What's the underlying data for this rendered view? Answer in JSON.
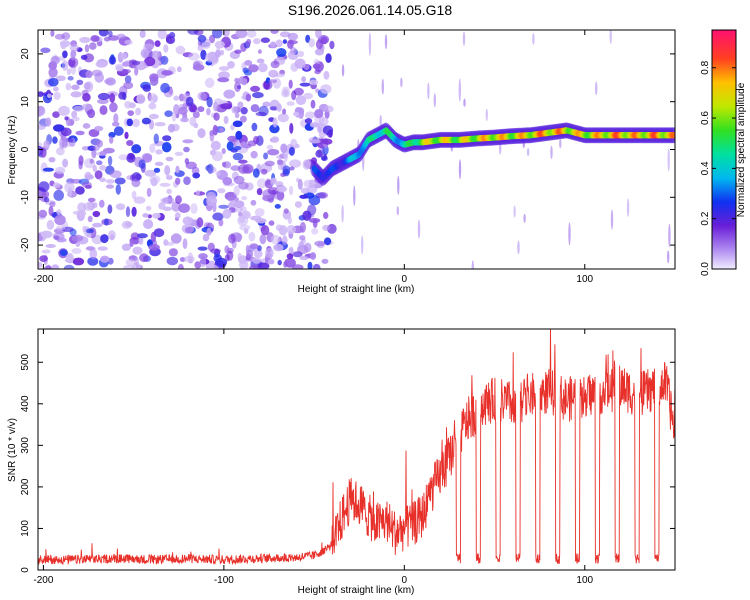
{
  "title": "S196.2026.061.14.05.G18",
  "chart_data": [
    {
      "type": "heatmap",
      "name": "spectrogram",
      "xlabel": "Height of straight line (km)",
      "ylabel": "Frequency (Hz)",
      "xlim": [
        -203,
        150
      ],
      "ylim": [
        -25,
        25
      ],
      "xticks": [
        -200,
        -100,
        0,
        100
      ],
      "yticks": [
        -20,
        -10,
        0,
        10,
        20
      ],
      "colorbar": {
        "label": "Normalized spectral amplitude",
        "range": [
          0,
          0.95
        ],
        "ticks": [
          0.0,
          0.2,
          0.4,
          0.6,
          0.8
        ],
        "tick_labels": [
          "0.0",
          "0.2",
          "0.4",
          "0.6",
          "0.8"
        ]
      },
      "ridge": {
        "x": [
          -50,
          -45,
          -40,
          -35,
          -30,
          -25,
          -20,
          -15,
          -10,
          -5,
          0,
          5,
          10,
          20,
          30,
          40,
          50,
          60,
          70,
          80,
          90,
          100,
          110,
          120,
          130,
          140,
          150
        ],
        "frequency": [
          -4,
          -6,
          -4,
          -3,
          -2,
          -1,
          2,
          3,
          4,
          2,
          1,
          1.5,
          1.5,
          2,
          2,
          2.3,
          2.5,
          2.8,
          3,
          3.5,
          4,
          3,
          3,
          3,
          3,
          3,
          3
        ],
        "amplitude": [
          0.3,
          0.35,
          0.3,
          0.3,
          0.4,
          0.45,
          0.5,
          0.55,
          0.6,
          0.45,
          0.5,
          0.6,
          0.75,
          0.8,
          0.75,
          0.8,
          0.85,
          0.8,
          0.85,
          0.9,
          0.85,
          0.8,
          0.85,
          0.9,
          0.85,
          0.9,
          0.85
        ]
      },
      "noise_region": {
        "x_start": -203,
        "x_end": -40
      }
    },
    {
      "type": "line",
      "name": "snr",
      "xlabel": "Height of straight line (km)",
      "ylabel": "SNR (10 * v/v)",
      "xlim": [
        -203,
        150
      ],
      "ylim": [
        0,
        580
      ],
      "xticks": [
        -200,
        -100,
        0,
        100
      ],
      "yticks": [
        0,
        100,
        200,
        300,
        400,
        500
      ],
      "series": [
        {
          "name": "SNR",
          "color": "#e8302a",
          "x": [
            -203,
            -180,
            -160,
            -140,
            -120,
            -100,
            -80,
            -60,
            -50,
            -40,
            -35,
            -30,
            -25,
            -20,
            -15,
            -10,
            -5,
            0,
            5,
            10,
            15,
            20,
            25,
            30,
            35,
            40,
            45,
            50,
            60,
            70,
            80,
            90,
            100,
            110,
            120,
            130,
            140,
            145,
            150
          ],
          "y": [
            25,
            25,
            28,
            25,
            27,
            25,
            28,
            30,
            35,
            60,
            120,
            170,
            160,
            130,
            110,
            120,
            90,
            100,
            110,
            130,
            190,
            230,
            270,
            320,
            360,
            380,
            400,
            410,
            400,
            420,
            430,
            410,
            420,
            430,
            440,
            420,
            440,
            450,
            330
          ]
        }
      ],
      "dropouts_x": [
        30,
        41,
        52,
        63,
        74,
        85,
        96,
        107,
        118,
        129,
        140
      ]
    }
  ]
}
